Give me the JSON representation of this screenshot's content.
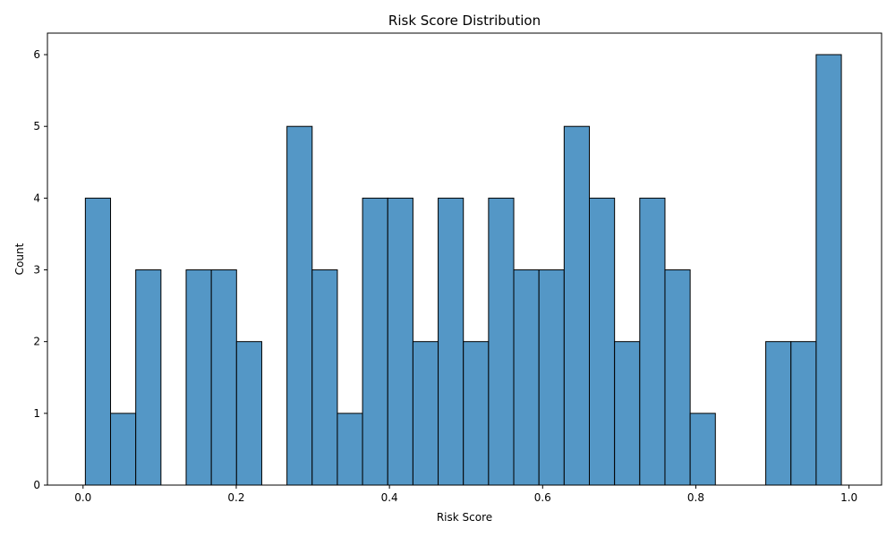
{
  "chart_data": {
    "type": "bar",
    "title": "Risk Score Distribution",
    "xlabel": "Risk Score",
    "ylabel": "Count",
    "bin_start": 0.003,
    "bin_width": 0.0329,
    "values": [
      4,
      1,
      3,
      0,
      3,
      3,
      2,
      0,
      5,
      3,
      1,
      4,
      4,
      2,
      4,
      2,
      4,
      3,
      3,
      5,
      4,
      2,
      4,
      3,
      1,
      0,
      0,
      2,
      2,
      6
    ],
    "xlim": [
      -0.0465,
      1.0425
    ],
    "ylim": [
      0,
      6.3
    ],
    "xticks": [
      0.0,
      0.2,
      0.4,
      0.6,
      0.8,
      1.0
    ],
    "xtick_labels": [
      "0.0",
      "0.2",
      "0.4",
      "0.6",
      "0.8",
      "1.0"
    ],
    "yticks": [
      0,
      1,
      2,
      3,
      4,
      5,
      6
    ],
    "ytick_labels": [
      "0",
      "1",
      "2",
      "3",
      "4",
      "5",
      "6"
    ],
    "grid": false,
    "bar_color": "#5497c6",
    "edge_color": "#000000"
  }
}
